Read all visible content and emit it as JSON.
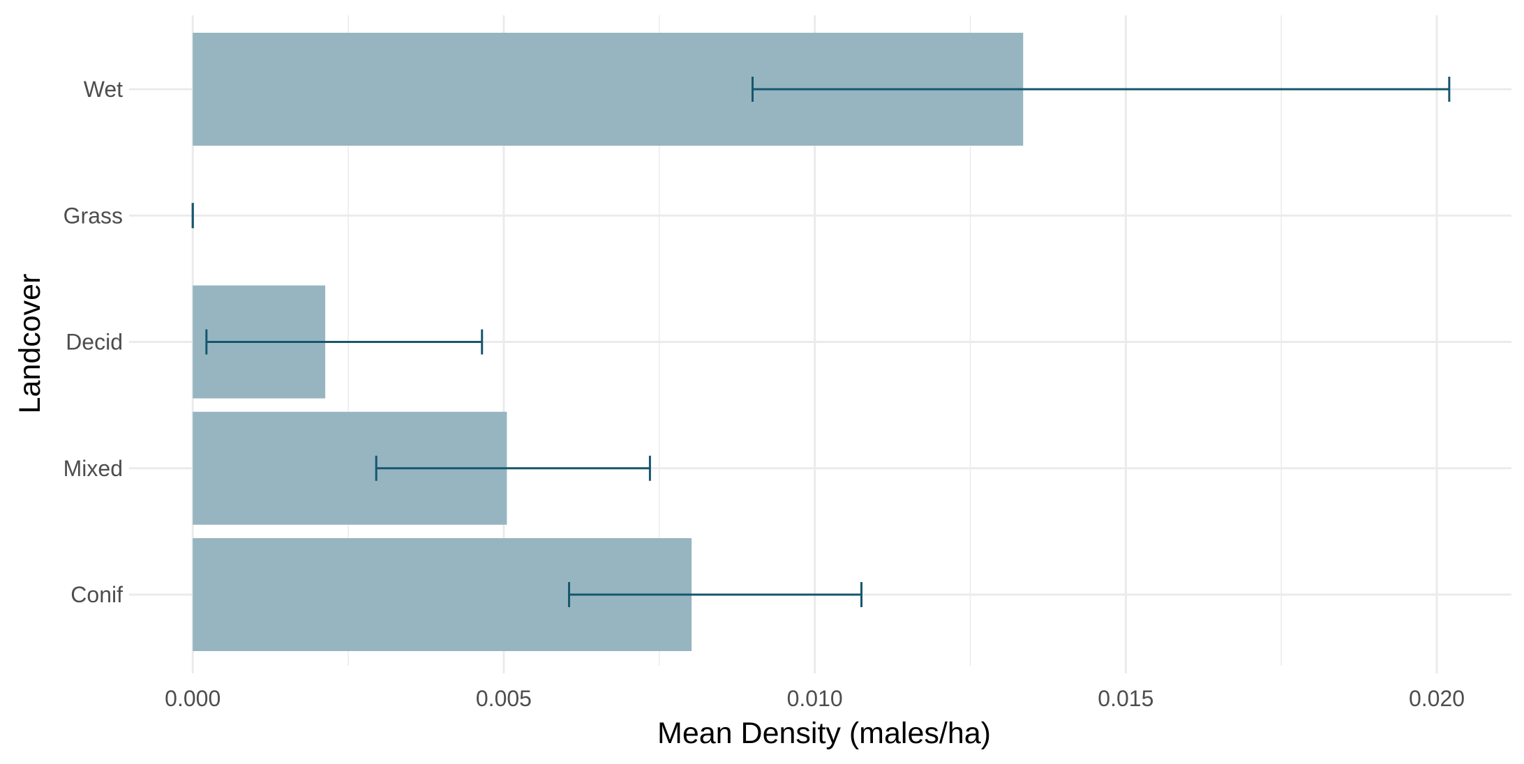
{
  "chart_data": {
    "type": "bar",
    "orientation": "horizontal",
    "xlabel": "Mean Density (males/ha)",
    "ylabel": "Landcover",
    "xlim": [
      -0.0009,
      0.0212
    ],
    "x_ticks": [
      "0.000",
      "0.005",
      "0.010",
      "0.015",
      "0.020"
    ],
    "x_tick_values": [
      0,
      0.005,
      0.01,
      0.015,
      0.02
    ],
    "categories": [
      "Conif",
      "Mixed",
      "Decid",
      "Grass",
      "Wet"
    ],
    "values": [
      0.00802,
      0.00505,
      0.00213,
      0,
      0.01335
    ],
    "error_low": [
      0.00605,
      0.00295,
      0.00022,
      0,
      0.009
    ],
    "error_high": [
      0.01075,
      0.00735,
      0.00465,
      0,
      0.0202
    ],
    "grid": true,
    "legend": "none",
    "colors": {
      "bar": "#96b5c0",
      "error": "#16566e",
      "grid": "#ebebeb"
    }
  }
}
